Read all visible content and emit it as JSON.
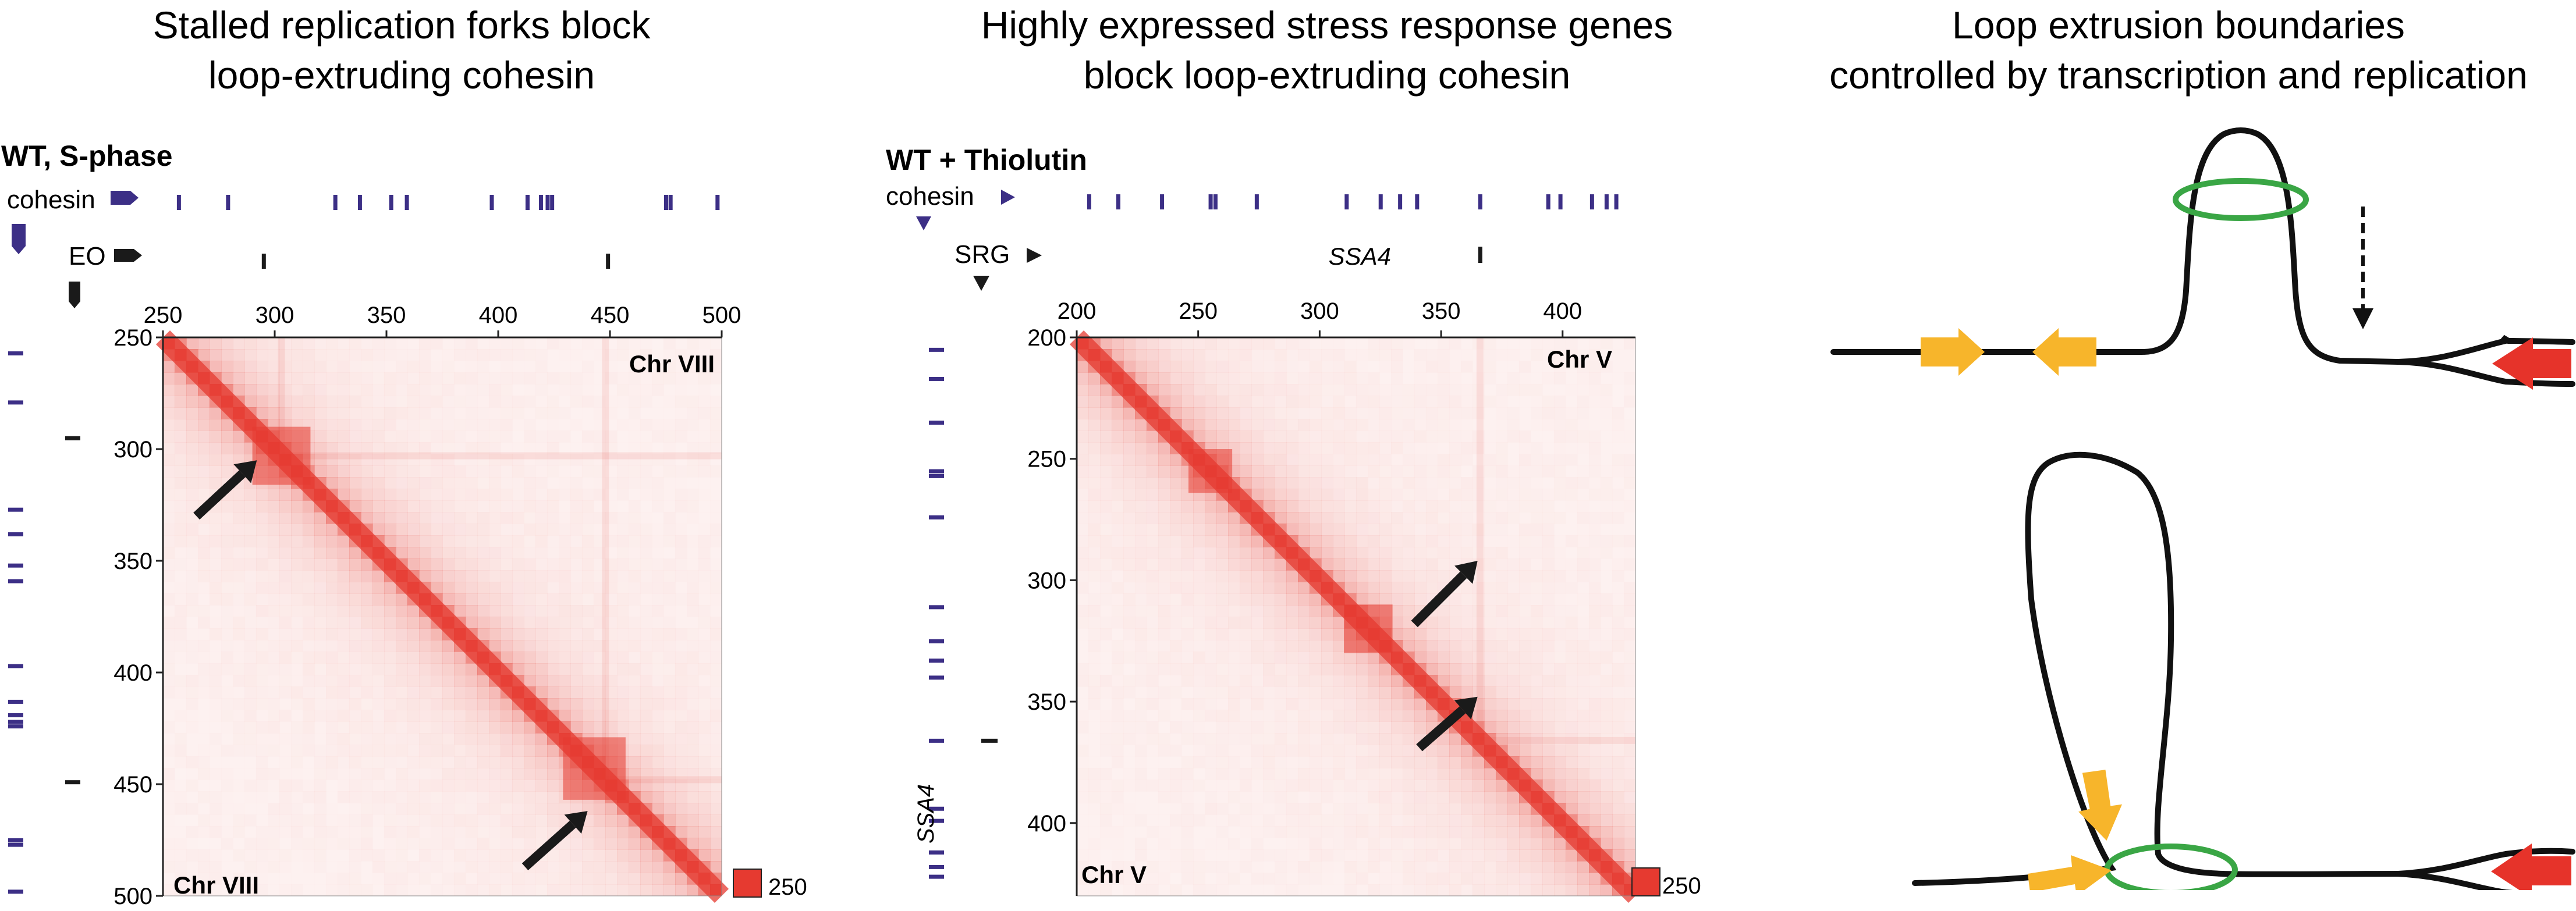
{
  "panels": [
    {
      "title_lines": [
        "Stalled replication forks block",
        "loop-extruding cohesin"
      ],
      "condition": "WT, S-phase",
      "track1_label": "cohesin",
      "track2_label": "EO",
      "axis_ticks": [
        "250",
        "300",
        "350",
        "400",
        "450",
        "500"
      ],
      "tick_values": [
        250,
        300,
        350,
        400,
        450,
        500
      ],
      "range": [
        250,
        500
      ],
      "map_label_top": "Chr VIII",
      "map_label_bottom": "Chr VIII",
      "scale_value": "250",
      "cohesin_sites": [
        257,
        279,
        327,
        338,
        352,
        359,
        397,
        413,
        419,
        422,
        424,
        475,
        477,
        498
      ],
      "track2_sites": [
        295,
        449
      ],
      "track2_italic": false,
      "track2_site_label": "",
      "features": [
        {
          "type": "tad",
          "center": 303,
          "half": 13
        },
        {
          "type": "tad",
          "center": 443,
          "half": 14
        },
        {
          "type": "stripe",
          "at": 303
        },
        {
          "type": "stripe",
          "at": 448
        }
      ],
      "arrows": [
        {
          "from": [
            265,
            330
          ],
          "to": [
            292,
            305
          ]
        },
        {
          "from": [
            412,
            487
          ],
          "to": [
            440,
            462
          ]
        }
      ],
      "colors": {
        "track1": "#3c2f86",
        "track2": "#1a1a1a"
      }
    },
    {
      "title_lines": [
        "Highly expressed stress response genes",
        "block loop-extruding cohesin"
      ],
      "condition": "WT + Thiolutin",
      "track1_label": "cohesin",
      "track2_label": "SRG",
      "axis_ticks": [
        "200",
        "250",
        "300",
        "350",
        "400"
      ],
      "tick_values": [
        200,
        250,
        300,
        350,
        400
      ],
      "range": [
        200,
        430
      ],
      "map_label_top": "Chr V",
      "map_label_bottom": "Chr V",
      "scale_value": "250",
      "cohesin_sites": [
        205,
        217,
        235,
        255,
        257,
        274,
        311,
        325,
        333,
        340,
        366,
        394,
        399,
        412,
        418,
        422
      ],
      "track2_sites": [
        366
      ],
      "track2_italic": true,
      "track2_site_label": "SSA4",
      "left_gene_label": "SSA4",
      "features": [
        {
          "type": "stripe",
          "at": 366
        },
        {
          "type": "tad",
          "center": 320,
          "half": 10
        },
        {
          "type": "tad",
          "center": 255,
          "half": 9
        }
      ],
      "arrows": [
        {
          "from": [
            339,
            318
          ],
          "to": [
            365,
            292
          ]
        },
        {
          "from": [
            341,
            369
          ],
          "to": [
            365,
            348
          ]
        }
      ],
      "colors": {
        "track1": "#3c2f86",
        "track2": "#1a1a1a"
      }
    }
  ],
  "model": {
    "title_lines": [
      "Loop extrusion boundaries",
      "controlled by transcription and replication"
    ],
    "colors": {
      "line": "#111111",
      "cohesin_ring": "#3aa645",
      "gene_arrow": "#f7b52b",
      "fork_arrow": "#e6332a"
    }
  },
  "heatmap": {
    "color": "#e63a30"
  }
}
